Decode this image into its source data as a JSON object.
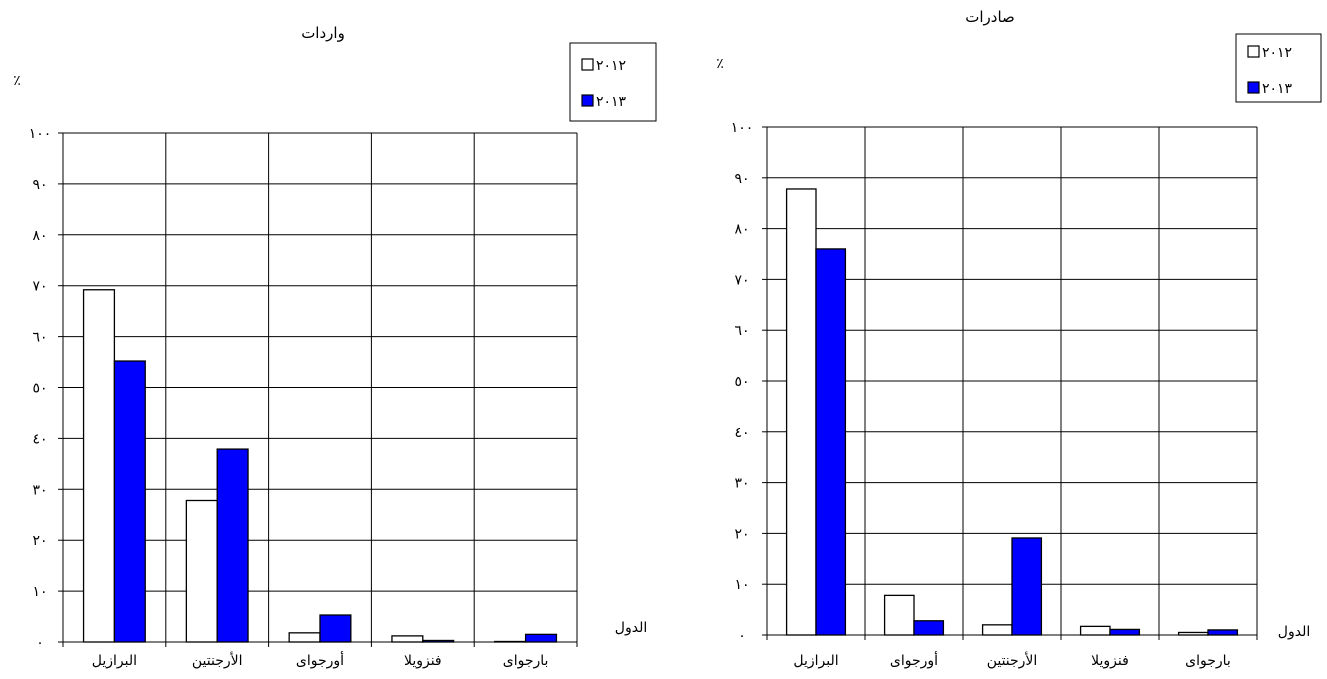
{
  "chart_data": [
    {
      "type": "bar",
      "title": "واردات",
      "ylabel": "٪",
      "xlabel": "الدول",
      "categories": [
        "البرازيل",
        "الأرجنتين",
        "أورجواى",
        "فنزويلا",
        "بارجواى"
      ],
      "series": [
        {
          "name": "٢٠١٢",
          "color": "#ffffff",
          "values": [
            69.2,
            27.8,
            1.8,
            1.2,
            0.1
          ]
        },
        {
          "name": "٢٠١٣",
          "color": "#0000ff",
          "values": [
            55.2,
            37.9,
            5.3,
            0.3,
            1.5
          ]
        }
      ],
      "ylim": [
        0,
        100
      ],
      "yticks": [
        0,
        10,
        20,
        30,
        40,
        50,
        60,
        70,
        80,
        90,
        100
      ],
      "ytick_labels": [
        "٠",
        "١٠",
        "٢٠",
        "٣٠",
        "٤٠",
        "٥٠",
        "٦٠",
        "٧٠",
        "٨٠",
        "٩٠",
        "١٠٠"
      ],
      "grid": true,
      "legend": "top-right"
    },
    {
      "type": "bar",
      "title": "صادرات",
      "ylabel": "٪",
      "xlabel": "الدول",
      "categories": [
        "البرازيل",
        "أورجواى",
        "الأرجنتين",
        "فنزويلا",
        "بارجواى"
      ],
      "series": [
        {
          "name": "٢٠١٢",
          "color": "#ffffff",
          "values": [
            87.8,
            7.8,
            2.0,
            1.7,
            0.5
          ]
        },
        {
          "name": "٢٠١٣",
          "color": "#0000ff",
          "values": [
            76.0,
            2.8,
            19.1,
            1.1,
            1.0
          ]
        }
      ],
      "ylim": [
        0,
        100
      ],
      "yticks": [
        0,
        10,
        20,
        30,
        40,
        50,
        60,
        70,
        80,
        90,
        100
      ],
      "ytick_labels": [
        "٠",
        "١٠",
        "٢٠",
        "٣٠",
        "٤٠",
        "٥٠",
        "٦٠",
        "٧٠",
        "٨٠",
        "٩٠",
        "١٠٠"
      ],
      "grid": true,
      "legend": "top-right"
    }
  ]
}
